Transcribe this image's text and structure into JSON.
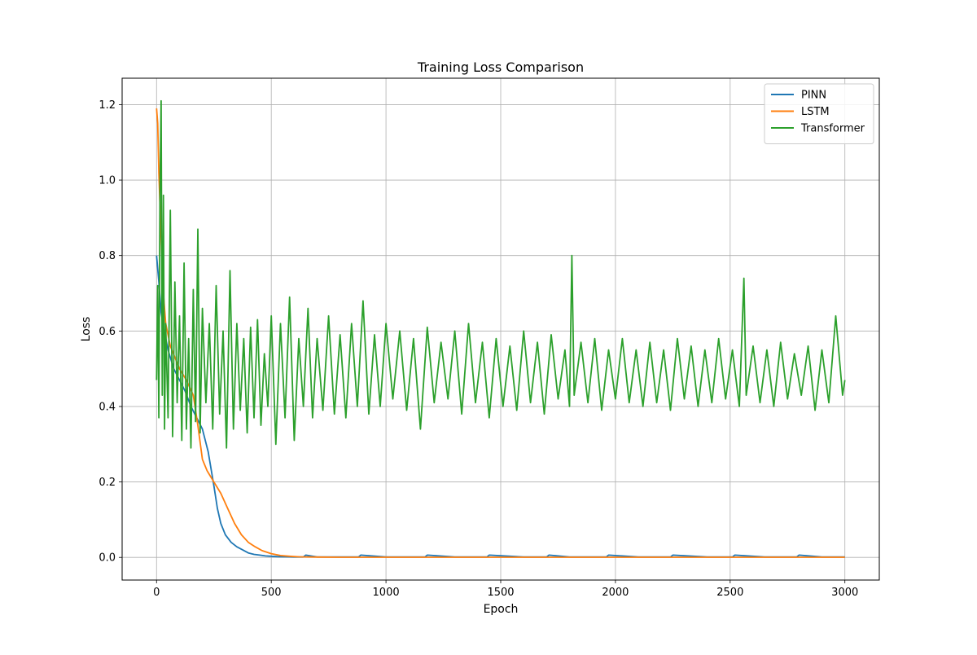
{
  "chart_data": {
    "type": "line",
    "title": "Training Loss Comparison",
    "xlabel": "Epoch",
    "ylabel": "Loss",
    "xlim": [
      -150,
      3150
    ],
    "ylim": [
      -0.06,
      1.27
    ],
    "xticks": [
      0,
      500,
      1000,
      1500,
      2000,
      2500,
      3000
    ],
    "xtick_labels": [
      "0",
      "500",
      "1000",
      "1500",
      "2000",
      "2500",
      "3000"
    ],
    "yticks": [
      0.0,
      0.2,
      0.4,
      0.6,
      0.8,
      1.0,
      1.2
    ],
    "ytick_labels": [
      "0.0",
      "0.2",
      "0.4",
      "0.6",
      "0.8",
      "1.0",
      "1.2"
    ],
    "grid": true,
    "legend_position": "upper right",
    "series": [
      {
        "name": "PINN",
        "color": "#1f77b4",
        "x": [
          0,
          10,
          20,
          30,
          50,
          75,
          100,
          125,
          150,
          175,
          200,
          225,
          250,
          265,
          280,
          300,
          325,
          350,
          375,
          400,
          425,
          450,
          475,
          500,
          530,
          560,
          600,
          640,
          650,
          700,
          880,
          890,
          1000,
          1170,
          1180,
          1300,
          1440,
          1450,
          1600,
          1700,
          1710,
          1800,
          1960,
          1970,
          2100,
          2240,
          2250,
          2400,
          2510,
          2520,
          2650,
          2790,
          2800,
          2900,
          3000
        ],
        "y": [
          0.8,
          0.73,
          0.65,
          0.61,
          0.55,
          0.5,
          0.47,
          0.44,
          0.4,
          0.37,
          0.34,
          0.28,
          0.19,
          0.13,
          0.09,
          0.06,
          0.04,
          0.028,
          0.02,
          0.012,
          0.008,
          0.006,
          0.004,
          0.003,
          0.002,
          0.0015,
          0.001,
          0.001,
          0.006,
          0.001,
          0.001,
          0.006,
          0.001,
          0.001,
          0.006,
          0.001,
          0.001,
          0.006,
          0.001,
          0.001,
          0.006,
          0.001,
          0.001,
          0.006,
          0.001,
          0.001,
          0.006,
          0.001,
          0.001,
          0.006,
          0.001,
          0.001,
          0.006,
          0.001,
          0.001
        ]
      },
      {
        "name": "LSTM",
        "color": "#ff7f0e",
        "x": [
          0,
          5,
          10,
          20,
          30,
          40,
          60,
          80,
          100,
          130,
          160,
          180,
          200,
          220,
          250,
          280,
          310,
          340,
          370,
          400,
          430,
          460,
          500,
          540,
          580,
          620,
          700,
          800,
          1000,
          1500,
          2000,
          2500,
          3000
        ],
        "y": [
          1.19,
          1.15,
          1.02,
          0.85,
          0.7,
          0.62,
          0.56,
          0.53,
          0.5,
          0.47,
          0.43,
          0.35,
          0.26,
          0.23,
          0.2,
          0.17,
          0.13,
          0.09,
          0.06,
          0.04,
          0.028,
          0.018,
          0.01,
          0.005,
          0.003,
          0.0015,
          0.0008,
          0.0005,
          0.0004,
          0.0004,
          0.0004,
          0.0004,
          0.0004
        ]
      },
      {
        "name": "Transformer",
        "color": "#2ca02c",
        "x": [
          0,
          5,
          10,
          15,
          20,
          25,
          30,
          35,
          40,
          50,
          60,
          70,
          80,
          90,
          100,
          110,
          120,
          130,
          140,
          150,
          160,
          170,
          180,
          190,
          200,
          215,
          230,
          245,
          260,
          275,
          290,
          305,
          320,
          335,
          350,
          365,
          380,
          395,
          410,
          425,
          440,
          455,
          470,
          485,
          500,
          520,
          540,
          560,
          580,
          600,
          620,
          640,
          660,
          680,
          700,
          725,
          750,
          775,
          800,
          825,
          850,
          875,
          900,
          925,
          950,
          975,
          1000,
          1030,
          1060,
          1090,
          1120,
          1150,
          1180,
          1210,
          1240,
          1270,
          1300,
          1330,
          1360,
          1390,
          1420,
          1450,
          1480,
          1510,
          1540,
          1570,
          1600,
          1630,
          1660,
          1690,
          1720,
          1750,
          1780,
          1800,
          1810,
          1820,
          1850,
          1880,
          1910,
          1940,
          1970,
          2000,
          2030,
          2060,
          2090,
          2120,
          2150,
          2180,
          2210,
          2240,
          2270,
          2300,
          2330,
          2360,
          2390,
          2420,
          2450,
          2480,
          2510,
          2540,
          2560,
          2570,
          2600,
          2630,
          2660,
          2690,
          2720,
          2750,
          2780,
          2810,
          2840,
          2870,
          2900,
          2930,
          2960,
          2990,
          3000
        ],
        "y": [
          0.47,
          0.72,
          0.37,
          0.97,
          1.21,
          0.43,
          0.96,
          0.34,
          0.62,
          0.37,
          0.92,
          0.32,
          0.73,
          0.41,
          0.64,
          0.31,
          0.78,
          0.34,
          0.58,
          0.29,
          0.71,
          0.36,
          0.87,
          0.33,
          0.66,
          0.41,
          0.62,
          0.34,
          0.72,
          0.38,
          0.6,
          0.29,
          0.76,
          0.34,
          0.62,
          0.39,
          0.58,
          0.33,
          0.61,
          0.37,
          0.63,
          0.35,
          0.54,
          0.4,
          0.64,
          0.3,
          0.62,
          0.37,
          0.69,
          0.31,
          0.58,
          0.4,
          0.66,
          0.37,
          0.58,
          0.39,
          0.64,
          0.38,
          0.59,
          0.37,
          0.62,
          0.4,
          0.68,
          0.38,
          0.59,
          0.4,
          0.62,
          0.42,
          0.6,
          0.39,
          0.58,
          0.34,
          0.61,
          0.41,
          0.57,
          0.42,
          0.6,
          0.38,
          0.62,
          0.41,
          0.57,
          0.37,
          0.58,
          0.4,
          0.56,
          0.39,
          0.6,
          0.41,
          0.57,
          0.38,
          0.59,
          0.42,
          0.55,
          0.4,
          0.8,
          0.43,
          0.57,
          0.41,
          0.58,
          0.39,
          0.55,
          0.42,
          0.58,
          0.41,
          0.55,
          0.4,
          0.57,
          0.41,
          0.55,
          0.39,
          0.58,
          0.42,
          0.56,
          0.4,
          0.55,
          0.41,
          0.58,
          0.42,
          0.55,
          0.4,
          0.74,
          0.43,
          0.56,
          0.41,
          0.55,
          0.4,
          0.57,
          0.42,
          0.54,
          0.43,
          0.56,
          0.39,
          0.55,
          0.41,
          0.64,
          0.43,
          0.47
        ]
      }
    ]
  }
}
